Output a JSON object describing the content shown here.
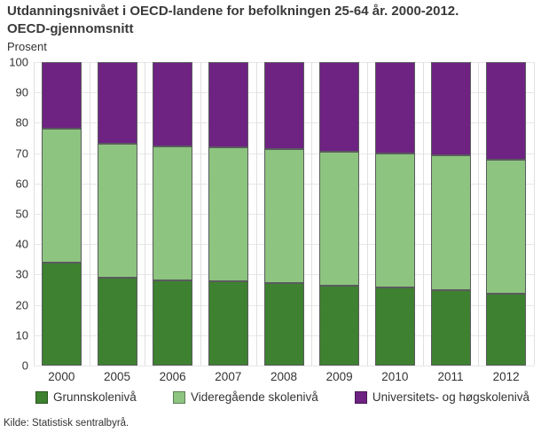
{
  "header": {
    "title_line1": "Utdanningsnivået i OECD-landene for befolkningen 25-64 år. 2000-2012.",
    "title_line2": "OECD-gjennomsnitt"
  },
  "chart_data": {
    "type": "bar",
    "stacked": true,
    "title": "Utdanningsnivået i OECD-landene for befolkningen 25-64 år. 2000-2012. OECD-gjennomsnitt",
    "ylabel": "Prosent",
    "ylim": [
      0,
      100
    ],
    "yticks": [
      0,
      10,
      20,
      30,
      40,
      50,
      60,
      70,
      80,
      90,
      100
    ],
    "grid": true,
    "legend_position": "bottom",
    "categories": [
      "2000",
      "2005",
      "2006",
      "2007",
      "2008",
      "2009",
      "2010",
      "2011",
      "2012"
    ],
    "series": [
      {
        "name": "Grunnskolenivå",
        "color": "#3E8130",
        "values": [
          34,
          29,
          28,
          27.7,
          27.1,
          26.3,
          25.6,
          24.9,
          23.7
        ]
      },
      {
        "name": "Videregående skolenivå",
        "color": "#8DC47F",
        "values": [
          44,
          44,
          44.1,
          44.1,
          44.3,
          44.3,
          44.3,
          44.3,
          44.2
        ]
      },
      {
        "name": "Universitets- og høgskolenivå",
        "color": "#6E2382",
        "values": [
          22,
          27,
          27.9,
          28.2,
          28.6,
          29.4,
          30.1,
          30.8,
          32.1
        ]
      }
    ]
  },
  "source": {
    "text": "Kilde: Statistisk sentralbyrå."
  }
}
